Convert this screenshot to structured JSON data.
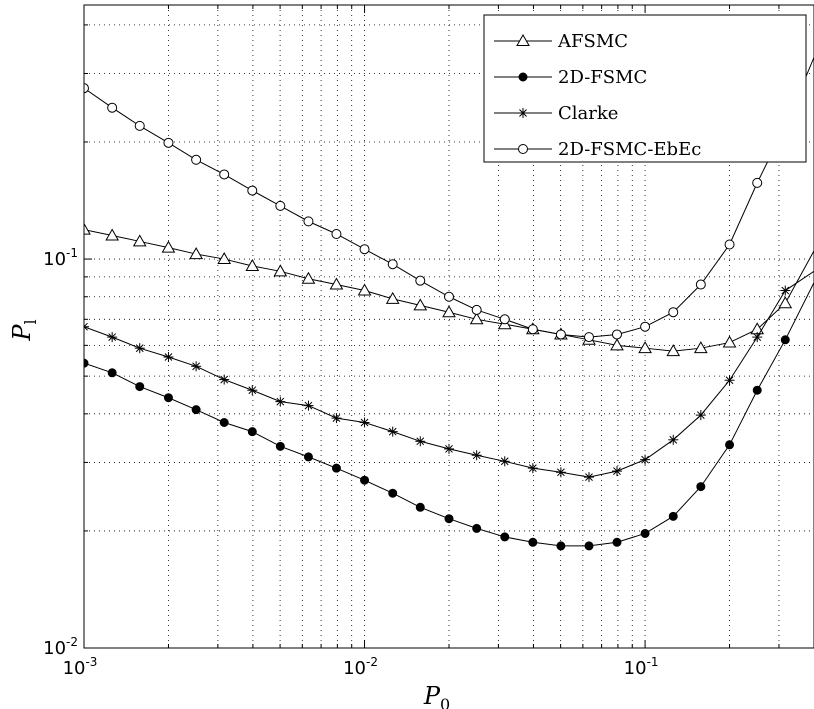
{
  "chart_data": {
    "type": "line",
    "xscale": "log",
    "yscale": "log",
    "xlabel": "P",
    "xlabel_sub": "0",
    "ylabel": "P",
    "ylabel_sub": "l",
    "xlim": [
      0.001,
      0.4
    ],
    "ylim": [
      0.01,
      0.45
    ],
    "grid": true,
    "legend_position": "top-right",
    "x_ticks": [
      {
        "value": 0.001,
        "base": "10",
        "exp": "-3"
      },
      {
        "value": 0.01,
        "base": "10",
        "exp": "-2"
      },
      {
        "value": 0.1,
        "base": "10",
        "exp": "-1"
      }
    ],
    "y_ticks": [
      {
        "value": 0.01,
        "base": "10",
        "exp": "-2"
      },
      {
        "value": 0.1,
        "base": "10",
        "exp": "-1"
      }
    ],
    "x": [
      0.001,
      0.00126,
      0.00158,
      0.002,
      0.00251,
      0.00316,
      0.00398,
      0.00501,
      0.00631,
      0.00794,
      0.01,
      0.0126,
      0.0158,
      0.02,
      0.0251,
      0.0316,
      0.0398,
      0.0501,
      0.0631,
      0.0794,
      0.1,
      0.126,
      0.158,
      0.2,
      0.251,
      0.316
    ],
    "series": [
      {
        "name": "AFSMC",
        "marker": "triangle",
        "values": [
          0.119,
          0.115,
          0.111,
          0.107,
          0.103,
          0.1,
          0.096,
          0.093,
          0.089,
          0.086,
          0.083,
          0.079,
          0.076,
          0.073,
          0.07,
          0.068,
          0.066,
          0.064,
          0.062,
          0.06,
          0.059,
          0.058,
          0.059,
          0.061,
          0.066,
          0.077
        ],
        "tail": {
          "x": 0.4,
          "y": 0.105
        }
      },
      {
        "name": "2D-FSMC",
        "marker": "filled-circle",
        "values": [
          0.054,
          0.051,
          0.047,
          0.044,
          0.041,
          0.038,
          0.036,
          0.033,
          0.031,
          0.029,
          0.027,
          0.025,
          0.023,
          0.0215,
          0.0203,
          0.0193,
          0.0187,
          0.0183,
          0.0183,
          0.0187,
          0.0197,
          0.0218,
          0.026,
          0.0333,
          0.046,
          0.062
        ],
        "tail": {
          "x": 0.4,
          "y": 0.087
        }
      },
      {
        "name": "Clarke",
        "marker": "star",
        "values": [
          0.067,
          0.063,
          0.059,
          0.056,
          0.053,
          0.049,
          0.046,
          0.043,
          0.042,
          0.039,
          0.038,
          0.036,
          0.034,
          0.0325,
          0.0313,
          0.0302,
          0.029,
          0.0283,
          0.0275,
          0.0285,
          0.0305,
          0.0343,
          0.0397,
          0.0488,
          0.063,
          0.083
        ],
        "tail": {
          "x": 0.4,
          "y": 0.093
        }
      },
      {
        "name": "2D-FSMC-EbEc",
        "marker": "open-circle",
        "values": [
          0.275,
          0.245,
          0.22,
          0.199,
          0.18,
          0.165,
          0.15,
          0.137,
          0.125,
          0.116,
          0.106,
          0.097,
          0.088,
          0.08,
          0.074,
          0.07,
          0.066,
          0.064,
          0.063,
          0.064,
          0.067,
          0.073,
          0.086,
          0.109,
          0.157,
          0.22
        ],
        "tail": {
          "x": 0.4,
          "y": 0.33
        }
      }
    ]
  }
}
